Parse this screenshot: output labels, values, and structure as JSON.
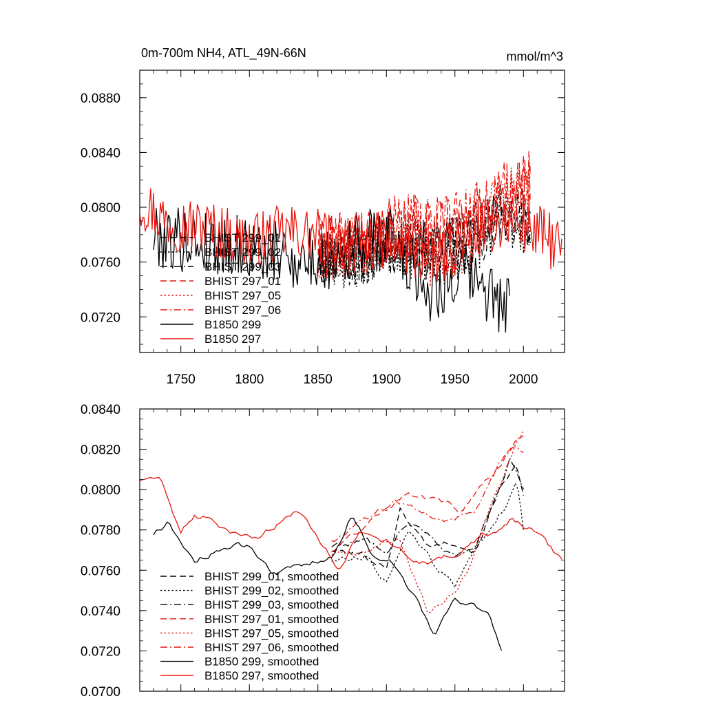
{
  "chart_data": [
    {
      "type": "line",
      "title": "0m-700m NH4, ATL_49N-66N",
      "units_label": "mmol/m^3",
      "xlim": [
        1720,
        2030
      ],
      "ylim": [
        0.0694,
        0.09
      ],
      "x_ticks": [
        1750,
        1800,
        1850,
        1900,
        1950,
        2000
      ],
      "y_ticks": [
        0.072,
        0.076,
        0.08,
        0.084,
        0.088
      ],
      "y_tick_labels": [
        "0.0720",
        "0.0760",
        "0.0800",
        "0.0840",
        "0.0880"
      ],
      "legend_position": "lower-left",
      "series": [
        {
          "name": "BHIST 299_01",
          "color": "#000000",
          "dash": "dash",
          "start": 1850,
          "end": 2005,
          "step": 1,
          "base": [
            [
              1850,
              0.0765
            ],
            [
              1880,
              0.0763
            ],
            [
              1905,
              0.0772
            ],
            [
              1930,
              0.0768
            ],
            [
              1960,
              0.0775
            ],
            [
              1985,
              0.0795
            ],
            [
              2005,
              0.079
            ]
          ],
          "amp": 0.0022,
          "seed": 11
        },
        {
          "name": "BHIST 299_02",
          "color": "#000000",
          "dash": "dot",
          "start": 1850,
          "end": 2005,
          "step": 1,
          "base": [
            [
              1850,
              0.0763
            ],
            [
              1880,
              0.076
            ],
            [
              1905,
              0.0775
            ],
            [
              1935,
              0.0762
            ],
            [
              1960,
              0.077
            ],
            [
              1985,
              0.0792
            ],
            [
              2005,
              0.0785
            ]
          ],
          "amp": 0.0022,
          "seed": 23
        },
        {
          "name": "BHIST 299_03",
          "color": "#000000",
          "dash": "dashdot",
          "start": 1850,
          "end": 2005,
          "step": 1,
          "base": [
            [
              1850,
              0.0766
            ],
            [
              1880,
              0.0765
            ],
            [
              1905,
              0.0778
            ],
            [
              1935,
              0.077
            ],
            [
              1960,
              0.0778
            ],
            [
              1985,
              0.0797
            ],
            [
              2005,
              0.0793
            ]
          ],
          "amp": 0.0022,
          "seed": 37
        },
        {
          "name": "BHIST 297_01",
          "color": "#e8140c",
          "dash": "dash",
          "start": 1850,
          "end": 2005,
          "step": 1,
          "base": [
            [
              1850,
              0.077
            ],
            [
              1880,
              0.0775
            ],
            [
              1905,
              0.0785
            ],
            [
              1930,
              0.0785
            ],
            [
              1960,
              0.079
            ],
            [
              1985,
              0.081
            ],
            [
              2005,
              0.0818
            ]
          ],
          "amp": 0.0024,
          "seed": 41
        },
        {
          "name": "BHIST 297_05",
          "color": "#e8140c",
          "dash": "dot",
          "start": 1850,
          "end": 2005,
          "step": 1,
          "base": [
            [
              1850,
              0.0768
            ],
            [
              1880,
              0.0772
            ],
            [
              1905,
              0.0782
            ],
            [
              1935,
              0.076
            ],
            [
              1960,
              0.0775
            ],
            [
              1985,
              0.0808
            ],
            [
              2005,
              0.0815
            ]
          ],
          "amp": 0.0024,
          "seed": 53
        },
        {
          "name": "BHIST 297_06",
          "color": "#e8140c",
          "dash": "dashdot",
          "start": 1850,
          "end": 2005,
          "step": 1,
          "base": [
            [
              1850,
              0.077
            ],
            [
              1880,
              0.0775
            ],
            [
              1905,
              0.0788
            ],
            [
              1935,
              0.0785
            ],
            [
              1960,
              0.079
            ],
            [
              1985,
              0.0808
            ],
            [
              2005,
              0.0812
            ]
          ],
          "amp": 0.0024,
          "seed": 67
        },
        {
          "name": "B1850 299",
          "color": "#000000",
          "dash": "solid",
          "start": 1730,
          "end": 1990,
          "step": 1,
          "base": [
            [
              1730,
              0.078
            ],
            [
              1760,
              0.0775
            ],
            [
              1800,
              0.077
            ],
            [
              1850,
              0.076
            ],
            [
              1880,
              0.0775
            ],
            [
              1905,
              0.0778
            ],
            [
              1930,
              0.074
            ],
            [
              1960,
              0.075
            ],
            [
              1990,
              0.0725
            ]
          ],
          "amp": 0.0024,
          "seed": 79
        },
        {
          "name": "B1850 297",
          "color": "#e8140c",
          "dash": "solid",
          "start": 1720,
          "end": 2028,
          "step": 1,
          "base": [
            [
              1720,
              0.0805
            ],
            [
              1740,
              0.079
            ],
            [
              1770,
              0.0785
            ],
            [
              1800,
              0.0775
            ],
            [
              1830,
              0.0782
            ],
            [
              1870,
              0.0775
            ],
            [
              1900,
              0.0775
            ],
            [
              1935,
              0.076
            ],
            [
              1960,
              0.078
            ],
            [
              1985,
              0.079
            ],
            [
              2005,
              0.0785
            ],
            [
              2028,
              0.077
            ]
          ],
          "amp": 0.0021,
          "seed": 97
        }
      ]
    },
    {
      "type": "line",
      "title": "",
      "units_label": "",
      "xlim": [
        1720,
        2030
      ],
      "ylim": [
        0.07,
        0.084
      ],
      "x_ticks": [
        1750,
        1800,
        1850,
        1900,
        1950,
        2000
      ],
      "y_ticks": [
        0.07,
        0.072,
        0.074,
        0.076,
        0.078,
        0.08,
        0.082,
        0.084
      ],
      "y_tick_labels": [
        "0.0700",
        "0.0720",
        "0.0740",
        "0.0760",
        "0.0780",
        "0.0800",
        "0.0820",
        "0.0840"
      ],
      "legend_position": "lower-left",
      "series": [
        {
          "name": "BHIST 299_01, smoothed",
          "color": "#000000",
          "dash": "dash",
          "start": 1860,
          "end": 2000,
          "step": 2,
          "base": [
            [
              1860,
              0.077
            ],
            [
              1880,
              0.0768
            ],
            [
              1900,
              0.0762
            ],
            [
              1910,
              0.079
            ],
            [
              1930,
              0.0772
            ],
            [
              1950,
              0.0775
            ],
            [
              1965,
              0.077
            ],
            [
              1985,
              0.0805
            ],
            [
              1995,
              0.0812
            ],
            [
              2000,
              0.0795
            ]
          ],
          "amp": 0.0005,
          "seed": 101
        },
        {
          "name": "BHIST 299_02, smoothed",
          "color": "#000000",
          "dash": "dot",
          "start": 1860,
          "end": 2000,
          "step": 2,
          "base": [
            [
              1860,
              0.0765
            ],
            [
              1885,
              0.0768
            ],
            [
              1900,
              0.0755
            ],
            [
              1915,
              0.078
            ],
            [
              1935,
              0.0762
            ],
            [
              1950,
              0.0752
            ],
            [
              1965,
              0.077
            ],
            [
              1985,
              0.079
            ],
            [
              1995,
              0.0805
            ],
            [
              2000,
              0.078
            ]
          ],
          "amp": 0.0005,
          "seed": 113
        },
        {
          "name": "BHIST 299_03, smoothed",
          "color": "#000000",
          "dash": "dashdot",
          "start": 1860,
          "end": 2000,
          "step": 2,
          "base": [
            [
              1860,
              0.0772
            ],
            [
              1885,
              0.0775
            ],
            [
              1900,
              0.077
            ],
            [
              1915,
              0.0785
            ],
            [
              1935,
              0.0775
            ],
            [
              1950,
              0.0768
            ],
            [
              1965,
              0.0772
            ],
            [
              1980,
              0.0795
            ],
            [
              1990,
              0.0815
            ],
            [
              2000,
              0.08
            ]
          ],
          "amp": 0.0005,
          "seed": 127
        },
        {
          "name": "BHIST 297_01, smoothed",
          "color": "#e8140c",
          "dash": "dash",
          "start": 1860,
          "end": 2000,
          "step": 2,
          "base": [
            [
              1860,
              0.077
            ],
            [
              1880,
              0.078
            ],
            [
              1900,
              0.079
            ],
            [
              1915,
              0.08
            ],
            [
              1935,
              0.0795
            ],
            [
              1955,
              0.079
            ],
            [
              1975,
              0.0805
            ],
            [
              1985,
              0.0815
            ],
            [
              2000,
              0.0828
            ]
          ],
          "amp": 0.0005,
          "seed": 131
        },
        {
          "name": "BHIST 297_05, smoothed",
          "color": "#e8140c",
          "dash": "dot",
          "start": 1860,
          "end": 2000,
          "step": 2,
          "base": [
            [
              1860,
              0.0768
            ],
            [
              1885,
              0.077
            ],
            [
              1910,
              0.0775
            ],
            [
              1930,
              0.074
            ],
            [
              1945,
              0.0745
            ],
            [
              1960,
              0.076
            ],
            [
              1975,
              0.079
            ],
            [
              1990,
              0.0815
            ],
            [
              2000,
              0.083
            ]
          ],
          "amp": 0.0005,
          "seed": 149
        },
        {
          "name": "BHIST 297_06, smoothed",
          "color": "#e8140c",
          "dash": "dashdot",
          "start": 1860,
          "end": 2000,
          "step": 2,
          "base": [
            [
              1860,
              0.0775
            ],
            [
              1885,
              0.0785
            ],
            [
              1905,
              0.0795
            ],
            [
              1925,
              0.079
            ],
            [
              1945,
              0.0785
            ],
            [
              1965,
              0.079
            ],
            [
              1985,
              0.0815
            ],
            [
              1995,
              0.0822
            ],
            [
              2000,
              0.0818
            ]
          ],
          "amp": 0.0005,
          "seed": 163
        },
        {
          "name": "B1850 299, smoothed",
          "color": "#000000",
          "dash": "solid",
          "start": 1730,
          "end": 1985,
          "step": 2,
          "base": [
            [
              1730,
              0.0778
            ],
            [
              1740,
              0.0783
            ],
            [
              1760,
              0.0765
            ],
            [
              1775,
              0.077
            ],
            [
              1800,
              0.0772
            ],
            [
              1815,
              0.0758
            ],
            [
              1840,
              0.0762
            ],
            [
              1860,
              0.0768
            ],
            [
              1875,
              0.0788
            ],
            [
              1890,
              0.0768
            ],
            [
              1905,
              0.0765
            ],
            [
              1920,
              0.0748
            ],
            [
              1935,
              0.0727
            ],
            [
              1950,
              0.0745
            ],
            [
              1965,
              0.0742
            ],
            [
              1975,
              0.0738
            ],
            [
              1985,
              0.072
            ]
          ],
          "amp": 0.0005,
          "seed": 173
        },
        {
          "name": "B1850 297, smoothed",
          "color": "#e8140c",
          "dash": "solid",
          "start": 1720,
          "end": 2028,
          "step": 2,
          "base": [
            [
              1720,
              0.0805
            ],
            [
              1735,
              0.0805
            ],
            [
              1750,
              0.0778
            ],
            [
              1760,
              0.0788
            ],
            [
              1775,
              0.0785
            ],
            [
              1790,
              0.0778
            ],
            [
              1810,
              0.0778
            ],
            [
              1835,
              0.079
            ],
            [
              1850,
              0.0778
            ],
            [
              1865,
              0.076
            ],
            [
              1880,
              0.078
            ],
            [
              1900,
              0.0775
            ],
            [
              1920,
              0.0765
            ],
            [
              1935,
              0.0765
            ],
            [
              1955,
              0.077
            ],
            [
              1975,
              0.0778
            ],
            [
              1990,
              0.0785
            ],
            [
              2005,
              0.078
            ],
            [
              2028,
              0.0765
            ]
          ],
          "amp": 0.0005,
          "seed": 191
        }
      ]
    }
  ]
}
